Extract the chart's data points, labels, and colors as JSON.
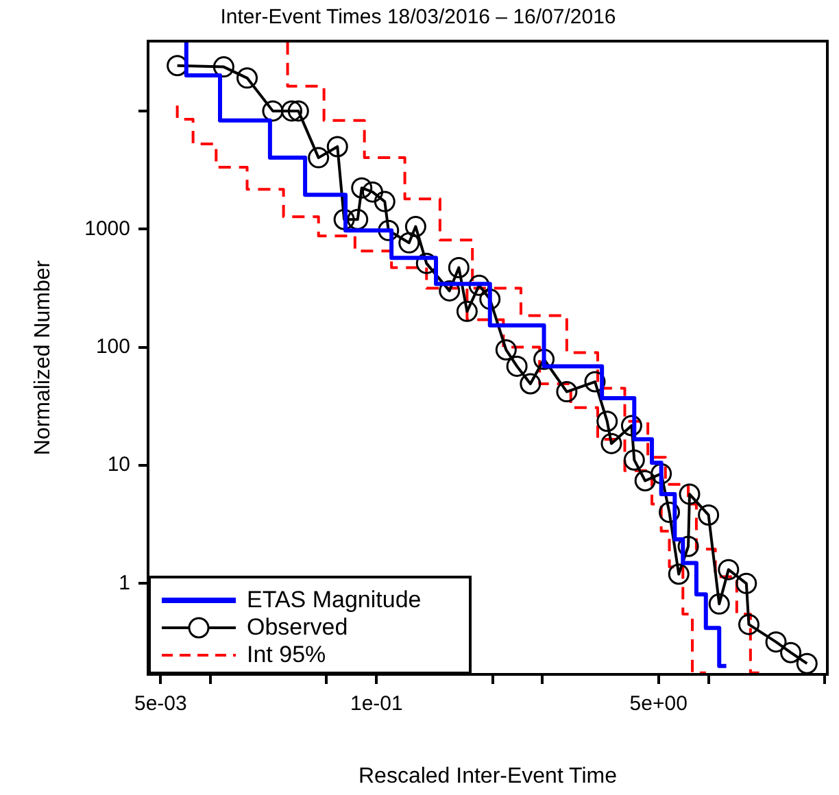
{
  "chart_data": {
    "type": "line",
    "title": "Inter-Event Times 18/03/2016 – 16/07/2016",
    "xlabel": "Rescaled Inter-Event Time",
    "ylabel": "Normalized Number",
    "log": "xy",
    "xlim": [
      0.0042,
      52
    ],
    "ylim": [
      0.17,
      39000
    ],
    "xticks": [
      {
        "value": 0.005,
        "label": "5e-03"
      },
      {
        "value": 0.01,
        "label": null
      },
      {
        "value": 0.05,
        "label": null
      },
      {
        "value": 0.1,
        "label": "1e-01"
      },
      {
        "value": 0.5,
        "label": null
      },
      {
        "value": 1,
        "label": null
      },
      {
        "value": 5,
        "label": "5e+00"
      },
      {
        "value": 10,
        "label": null
      },
      {
        "value": 50,
        "label": null
      }
    ],
    "yticks": [
      1,
      10,
      100,
      1000,
      {
        "value": 10000,
        "label": null
      }
    ],
    "legend": "bottom left",
    "series": [
      {
        "type": "step",
        "name": "ETAS Magnitude",
        "color": "#0000ff",
        "marker": "none",
        "line_style": "solid",
        "x": [
          0.00714,
          0.0114,
          0.0228,
          0.0371,
          0.065,
          0.123,
          0.228,
          0.482,
          1.02,
          2.28,
          3.57,
          4.56,
          5.19,
          6.26,
          7.01,
          8.45,
          9.64,
          11.6,
          12.8
        ],
        "values": [
          38100,
          20000,
          8300,
          4020,
          1950,
          973,
          570,
          343,
          153,
          69,
          37,
          16.6,
          10.5,
          5.7,
          2.36,
          1.49,
          0.81,
          0.42,
          0.2
        ]
      },
      {
        "type": "line",
        "name": "Observed",
        "color": "#000000",
        "marker": "circle",
        "line_style": "solid",
        "x": [
          0.0063,
          0.012,
          0.0166,
          0.0237,
          0.0308,
          0.0338,
          0.0447,
          0.0581,
          0.0638,
          0.0769,
          0.0814,
          0.0946,
          0.112,
          0.118,
          0.157,
          0.172,
          0.2,
          0.275,
          0.313,
          0.351,
          0.415,
          0.482,
          0.603,
          0.701,
          0.845,
          1.02,
          1.4,
          2.07,
          2.45,
          2.6,
          3.44,
          3.57,
          4.15,
          5.19,
          5.81,
          6.62,
          7.55,
          7.69,
          10,
          11.6,
          13.2,
          16.9,
          17.5,
          25.5,
          31.3,
          39.2
        ],
        "values": [
          24200,
          23600,
          19000,
          10000,
          10000,
          10000,
          4020,
          4990,
          1206,
          1206,
          2230,
          2060,
          1710,
          973,
          765,
          1050,
          512,
          300,
          472,
          201,
          334,
          255,
          95,
          69,
          49,
          79,
          42,
          51,
          23.6,
          15.3,
          21.7,
          11.1,
          7.4,
          8.5,
          4,
          1.2,
          2.06,
          5.7,
          3.8,
          0.67,
          1.31,
          1,
          0.45,
          0.32,
          0.26,
          0.21
        ]
      },
      {
        "type": "step",
        "name": "Int 95%",
        "color": "#ff0000",
        "marker": "none",
        "line_style": "dashed",
        "x": [
          0.0291,
          0.0482,
          0.0845,
          0.148,
          0.241,
          0.378,
          0.741,
          1.4,
          2.15,
          3.13,
          4.31,
          5.5,
          7.55,
          8.45,
          11,
          14.8,
          17.9,
          21.5
        ],
        "values": [
          38100,
          16200,
          8300,
          4020,
          1800,
          807,
          316,
          185,
          90,
          45,
          23.6,
          11.7,
          6.9,
          4.7,
          1.95,
          1.14,
          0.55,
          0.175
        ]
      },
      {
        "type": "step",
        "color": "#ff0000",
        "marker": "none",
        "line_style": "dashed",
        "x": [
          0.0063,
          0.00784,
          0.0108,
          0.0166,
          0.0275,
          0.0447,
          0.0741,
          0.123,
          0.2,
          0.351,
          0.581,
          0.96,
          1.48,
          2.15,
          3.13,
          4.56,
          5.19,
          5.81,
          7.01,
          7.99,
          9.64
        ],
        "values": [
          11100,
          8510,
          5260,
          3340,
          2170,
          1270,
          875,
          652,
          472,
          316,
          171,
          100,
          49,
          30.8,
          16.6,
          9,
          4.7,
          2.77,
          1.38,
          0.55,
          0.175
        ]
      }
    ]
  }
}
